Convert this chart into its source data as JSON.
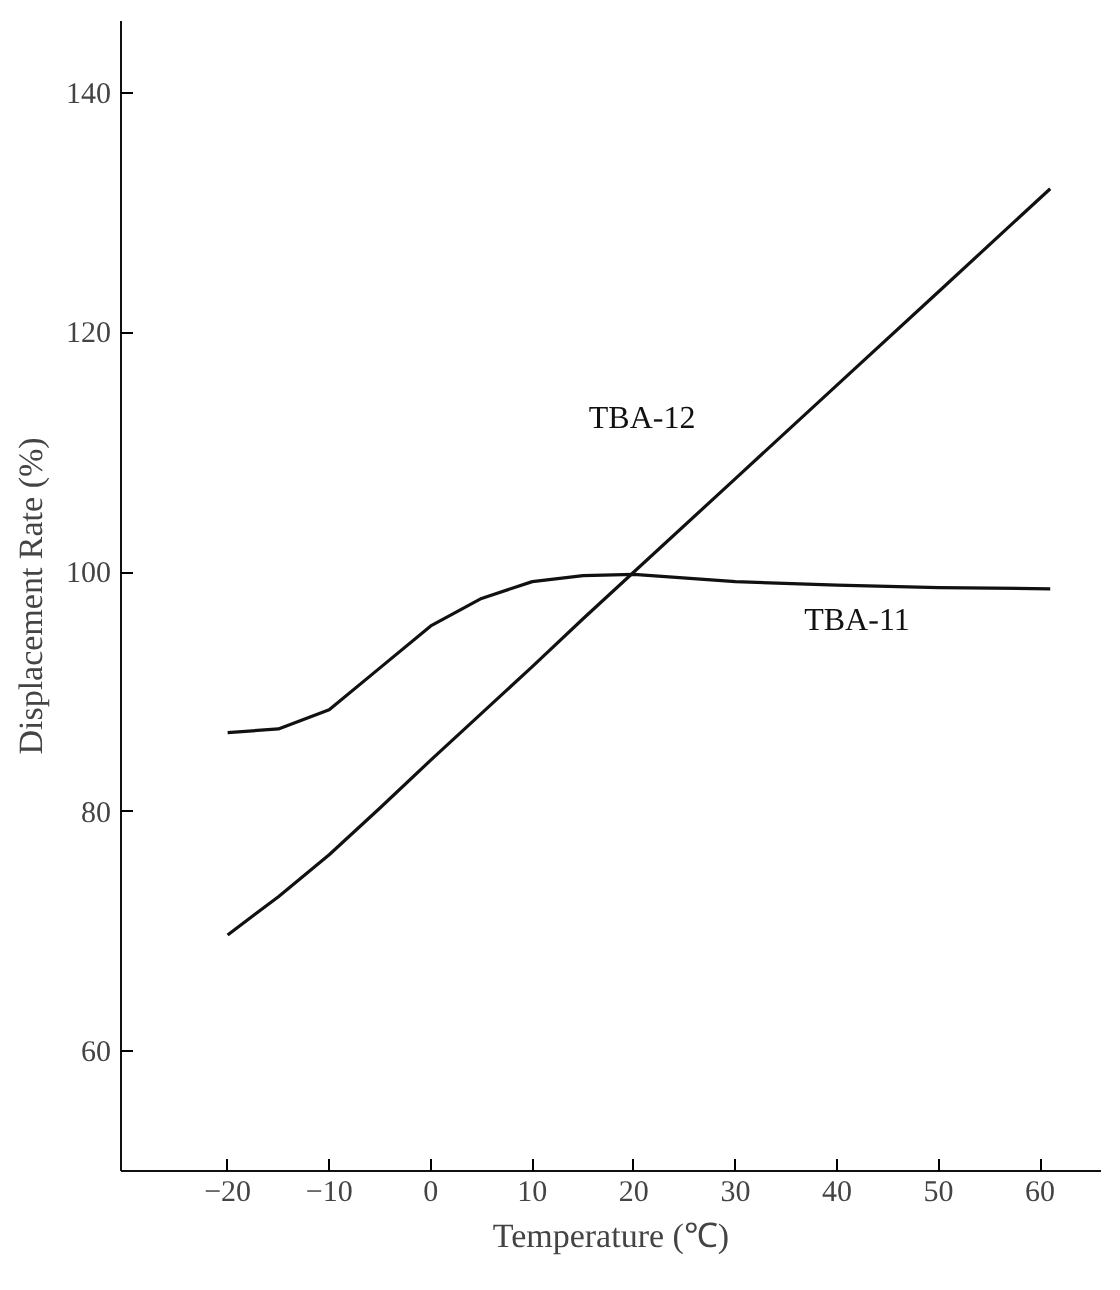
{
  "chart_data": {
    "type": "line",
    "xlabel": "Temperature (℃)",
    "ylabel": "Displacement Rate (%)",
    "xlim": [
      -30.5,
      66
    ],
    "ylim": [
      50,
      146
    ],
    "xticks": [
      {
        "value": -20,
        "label": "−20"
      },
      {
        "value": -10,
        "label": "−10"
      },
      0,
      10,
      20,
      30,
      40,
      50,
      60
    ],
    "yticks": [
      60,
      80,
      100,
      120,
      140
    ],
    "grid": false,
    "legend": false,
    "marker": "none",
    "line_style": "solid",
    "series": [
      {
        "name": "TBA-12",
        "color": "#111111",
        "x": [
          -20,
          -15,
          -10,
          -5,
          0,
          5,
          10,
          15,
          20,
          30,
          40,
          50,
          61
        ],
        "values": [
          69.7,
          72.9,
          76.4,
          80.3,
          84.3,
          88.2,
          92.1,
          96.1,
          100.0,
          107.8,
          115.6,
          123.4,
          132.0
        ]
      },
      {
        "name": "TBA-11",
        "color": "#111111",
        "x": [
          -20,
          -15,
          -10,
          -5,
          0,
          5,
          10,
          15,
          20,
          30,
          40,
          50,
          61
        ],
        "values": [
          86.6,
          86.9,
          88.5,
          92.0,
          95.5,
          97.8,
          99.2,
          99.7,
          99.8,
          99.2,
          98.9,
          98.7,
          98.6
        ]
      }
    ]
  }
}
